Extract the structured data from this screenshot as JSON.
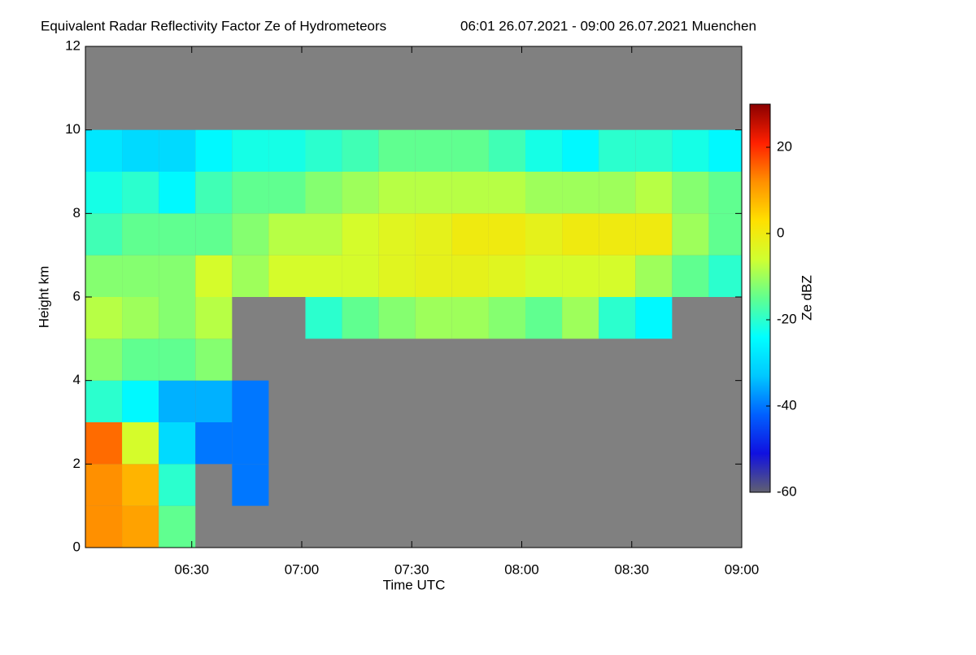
{
  "chart_data": {
    "type": "heatmap",
    "title": "Equivalent Radar Reflectivity Factor Ze of Hydrometeors",
    "subtitle": "06:01 26.07.2021 - 09:00 26.07.2021 Muenchen",
    "x_label": "Time UTC",
    "y_label": "Height km",
    "colorbar_label": "Ze dBZ",
    "xlim": [
      361,
      540
    ],
    "xticks": [
      {
        "value": 390,
        "label": "06:30"
      },
      {
        "value": 420,
        "label": "07:00"
      },
      {
        "value": 450,
        "label": "07:30"
      },
      {
        "value": 480,
        "label": "08:00"
      },
      {
        "value": 510,
        "label": "08:30"
      },
      {
        "value": 540,
        "label": "09:00"
      }
    ],
    "ylim": [
      0,
      12
    ],
    "yticks": [
      0,
      2,
      4,
      6,
      8,
      10,
      12
    ],
    "clim": [
      -60,
      30
    ],
    "cticks": [
      -60,
      -40,
      -20,
      0,
      20
    ],
    "background": "#808080",
    "colorscale": [
      "#606070",
      "#1010e0",
      "#0060ff",
      "#00c8ff",
      "#00ffff",
      "#60ff90",
      "#d0ff30",
      "#ffe000",
      "#ff9000",
      "#ff2000",
      "#8b0000"
    ],
    "x": [
      366,
      376,
      386,
      396,
      406,
      416,
      426,
      436,
      446,
      456,
      466,
      476,
      486,
      496,
      506,
      516,
      526,
      536
    ],
    "y": [
      0.5,
      1.5,
      2.5,
      3.5,
      4.5,
      5.5,
      6.5,
      7.5,
      8.5,
      9.5,
      10.5,
      11.5
    ],
    "z": [
      [
        12,
        10,
        -15,
        null,
        null,
        null,
        null,
        null,
        null,
        null,
        null,
        null,
        null,
        null,
        null,
        null,
        null,
        null
      ],
      [
        12,
        8,
        -20,
        null,
        -40,
        null,
        null,
        null,
        null,
        null,
        null,
        null,
        null,
        null,
        null,
        null,
        null,
        null
      ],
      [
        15,
        -5,
        -30,
        -40,
        -40,
        null,
        null,
        null,
        null,
        null,
        null,
        null,
        null,
        null,
        null,
        null,
        null,
        null
      ],
      [
        -20,
        -25,
        -35,
        -35,
        -40,
        null,
        null,
        null,
        null,
        null,
        null,
        null,
        null,
        null,
        null,
        null,
        null,
        null
      ],
      [
        -12,
        -15,
        -15,
        -12,
        null,
        null,
        null,
        null,
        null,
        null,
        null,
        null,
        null,
        null,
        null,
        null,
        null,
        null
      ],
      [
        -8,
        -10,
        -12,
        -8,
        null,
        null,
        -20,
        -15,
        -12,
        -10,
        -10,
        -12,
        -15,
        -10,
        -20,
        -25,
        null,
        null
      ],
      [
        -12,
        -12,
        -12,
        -5,
        -10,
        -5,
        -5,
        -5,
        -3,
        -2,
        -2,
        -3,
        -5,
        -5,
        -5,
        -10,
        -15,
        -20
      ],
      [
        -18,
        -15,
        -15,
        -15,
        -12,
        -8,
        -8,
        -5,
        -3,
        -2,
        0,
        0,
        -2,
        0,
        0,
        0,
        -10,
        -15
      ],
      [
        -22,
        -20,
        -25,
        -18,
        -15,
        -15,
        -12,
        -10,
        -8,
        -8,
        -8,
        -8,
        -10,
        -10,
        -10,
        -8,
        -12,
        -15
      ],
      [
        -28,
        -30,
        -30,
        -25,
        -22,
        -22,
        -20,
        -18,
        -15,
        -15,
        -15,
        -18,
        -22,
        -25,
        -20,
        -20,
        -22,
        -25
      ],
      [
        null,
        null,
        null,
        null,
        null,
        null,
        null,
        null,
        null,
        null,
        null,
        null,
        null,
        null,
        null,
        null,
        null,
        null
      ],
      [
        null,
        null,
        null,
        null,
        null,
        null,
        null,
        null,
        null,
        null,
        null,
        null,
        null,
        null,
        null,
        null,
        null,
        null
      ]
    ]
  }
}
